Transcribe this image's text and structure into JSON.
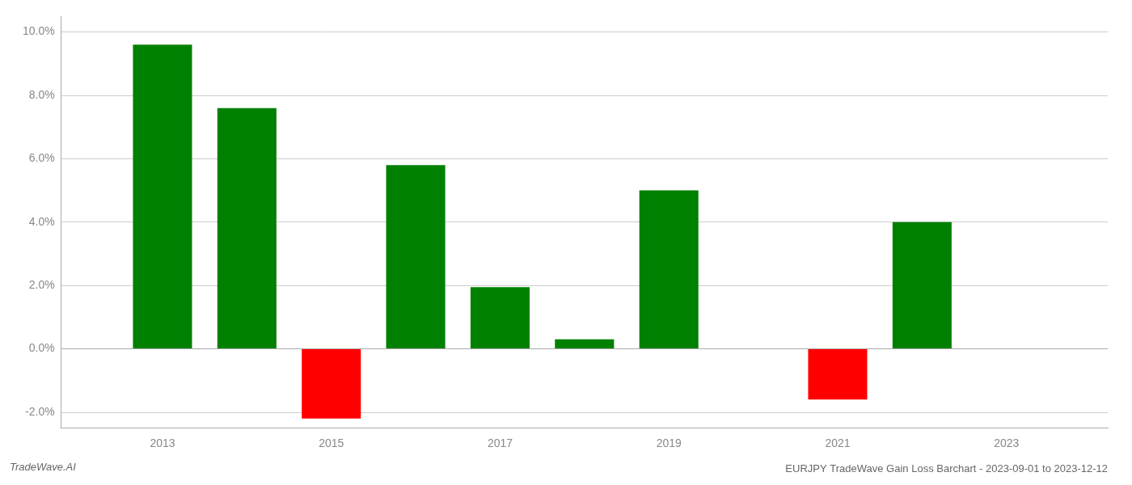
{
  "chart_data": {
    "type": "bar",
    "title": "EURJPY TradeWave Gain Loss Barchart - 2023-09-01 to 2023-12-12",
    "annotations": [
      "TradeWave.AI"
    ],
    "x": [
      2013,
      2014,
      2015,
      2016,
      2017,
      2018,
      2019,
      2020,
      2021,
      2022,
      2023
    ],
    "values": [
      0.096,
      0.076,
      -0.022,
      0.058,
      0.0195,
      0.003,
      0.05,
      null,
      -0.016,
      0.04,
      null
    ],
    "colors": [
      "#008000",
      "#008000",
      "#ff0000",
      "#008000",
      "#008000",
      "#008000",
      "#008000",
      null,
      "#ff0000",
      "#008000",
      null
    ],
    "xlim": [
      2011.8,
      2024.2
    ],
    "xticks": [
      2013,
      2015,
      2017,
      2019,
      2021,
      2023
    ],
    "ylim": [
      -0.025,
      0.105
    ],
    "yticks": [
      {
        "value": -0.02,
        "label": "-2.0%"
      },
      {
        "value": 0.0,
        "label": "0.0%"
      },
      {
        "value": 0.02,
        "label": "2.0%"
      },
      {
        "value": 0.04,
        "label": "4.0%"
      },
      {
        "value": 0.06,
        "label": "6.0%"
      },
      {
        "value": 0.08,
        "label": "8.0%"
      },
      {
        "value": 0.1,
        "label": "10.0%"
      }
    ],
    "grid": true
  }
}
